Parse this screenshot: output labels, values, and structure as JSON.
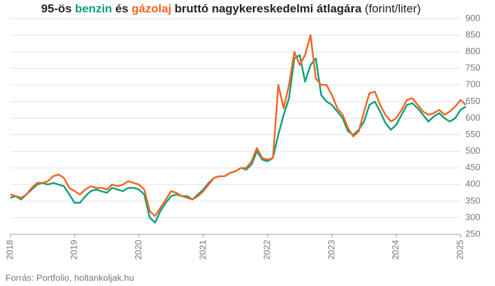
{
  "chart_data": {
    "type": "line",
    "title_parts": [
      "95-ös ",
      "benzin",
      " és ",
      "gázolaj",
      " bruttó nagykereskedelmi átlagára",
      " (forint/liter)"
    ],
    "source": "Forrás: Portfolio, holtankoljak.hu",
    "x": [
      2018,
      2018.083,
      2018.167,
      2018.25,
      2018.333,
      2018.417,
      2018.5,
      2018.583,
      2018.667,
      2018.75,
      2018.833,
      2018.917,
      2019,
      2019.083,
      2019.167,
      2019.25,
      2019.333,
      2019.417,
      2019.5,
      2019.583,
      2019.667,
      2019.75,
      2019.833,
      2019.917,
      2020,
      2020.083,
      2020.167,
      2020.25,
      2020.333,
      2020.417,
      2020.5,
      2020.583,
      2020.667,
      2020.75,
      2020.833,
      2020.917,
      2021,
      2021.083,
      2021.167,
      2021.25,
      2021.333,
      2021.417,
      2021.5,
      2021.583,
      2021.667,
      2021.75,
      2021.833,
      2021.917,
      2022,
      2022.083,
      2022.167,
      2022.25,
      2022.333,
      2022.417,
      2022.5,
      2022.583,
      2022.667,
      2022.75,
      2022.833,
      2022.917,
      2023,
      2023.083,
      2023.167,
      2023.25,
      2023.333,
      2023.417,
      2023.5,
      2023.583,
      2023.667,
      2023.75,
      2023.833,
      2023.917,
      2024,
      2024.083,
      2024.167,
      2024.25,
      2024.333,
      2024.417,
      2024.5,
      2024.583,
      2024.667,
      2024.75,
      2024.833,
      2024.917,
      2025,
      2025.083
    ],
    "series": [
      {
        "name": "benzin",
        "color": "#13a07a",
        "values": [
          360,
          365,
          355,
          370,
          385,
          400,
          405,
          400,
          405,
          400,
          395,
          370,
          345,
          345,
          365,
          380,
          385,
          380,
          375,
          390,
          385,
          380,
          390,
          390,
          385,
          370,
          300,
          285,
          320,
          345,
          365,
          370,
          365,
          365,
          355,
          370,
          385,
          405,
          420,
          425,
          425,
          435,
          440,
          450,
          445,
          460,
          500,
          475,
          470,
          480,
          550,
          610,
          660,
          780,
          790,
          710,
          760,
          780,
          670,
          650,
          640,
          620,
          600,
          560,
          550,
          565,
          590,
          640,
          650,
          620,
          585,
          565,
          580,
          610,
          640,
          645,
          630,
          610,
          590,
          605,
          615,
          600,
          590,
          600,
          625,
          635
        ]
      },
      {
        "name": "gázolaj",
        "color": "#f26522",
        "values": [
          370,
          365,
          360,
          370,
          390,
          405,
          405,
          410,
          425,
          430,
          420,
          390,
          380,
          370,
          385,
          395,
          390,
          390,
          385,
          400,
          395,
          400,
          410,
          405,
          400,
          385,
          320,
          305,
          330,
          355,
          380,
          375,
          365,
          360,
          355,
          365,
          380,
          400,
          420,
          425,
          425,
          435,
          440,
          450,
          450,
          470,
          510,
          480,
          475,
          480,
          700,
          630,
          700,
          800,
          760,
          790,
          850,
          720,
          700,
          700,
          670,
          630,
          610,
          570,
          545,
          560,
          620,
          675,
          680,
          640,
          610,
          590,
          600,
          625,
          655,
          660,
          640,
          620,
          610,
          615,
          625,
          610,
          620,
          635,
          655,
          640
        ]
      }
    ],
    "xlim": [
      2018,
      2025.15
    ],
    "xticks": [
      2018,
      2019,
      2020,
      2021,
      2022,
      2023,
      2024,
      2025
    ],
    "ylim": [
      250,
      900
    ],
    "yticks": [
      250,
      300,
      350,
      400,
      450,
      500,
      550,
      600,
      650,
      700,
      750,
      800,
      850,
      900
    ],
    "grid": true
  }
}
